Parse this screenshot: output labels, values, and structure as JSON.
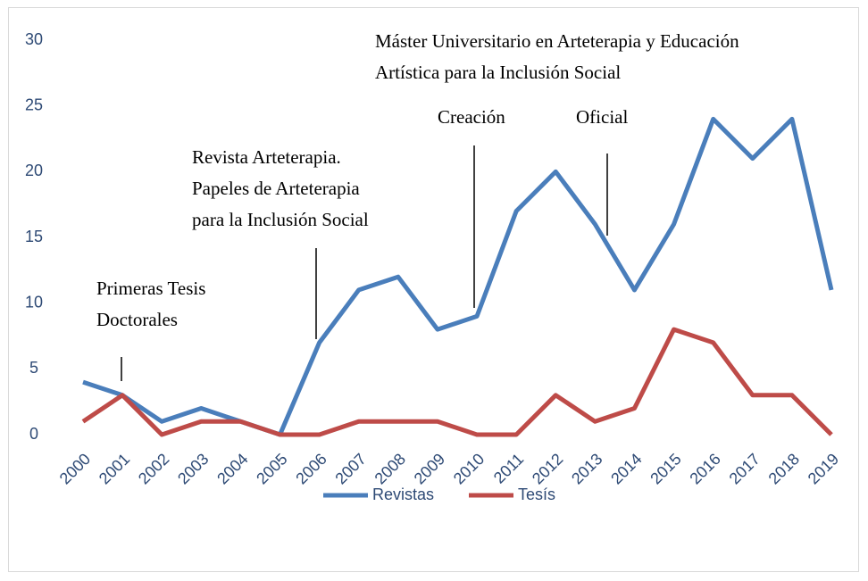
{
  "chart_data": {
    "type": "line",
    "categories": [
      "2000",
      "2001",
      "2002",
      "2003",
      "2004",
      "2005",
      "2006",
      "2007",
      "2008",
      "2009",
      "2010",
      "2011",
      "2012",
      "2013",
      "2014",
      "2015",
      "2016",
      "2017",
      "2018",
      "2019"
    ],
    "series": [
      {
        "name": "Revistas",
        "color": "#4a7ebb",
        "values": [
          4,
          3,
          1,
          2,
          1,
          0,
          7,
          11,
          12,
          8,
          9,
          17,
          20,
          16,
          11,
          16,
          24,
          21,
          24,
          11
        ]
      },
      {
        "name": "Tesís",
        "color": "#be4b48",
        "values": [
          1,
          3,
          0,
          1,
          1,
          0,
          0,
          1,
          1,
          1,
          0,
          0,
          3,
          1,
          2,
          8,
          7,
          3,
          3,
          0
        ]
      }
    ],
    "ylim": [
      0,
      30
    ],
    "yticks": [
      0,
      5,
      10,
      15,
      20,
      25,
      30
    ],
    "grid": false,
    "legend": "bottom",
    "annotations": [
      {
        "lines": [
          "Primeras  Tesis",
          "Doctorales"
        ]
      },
      {
        "lines": [
          "Revista Arteterapia.",
          "Papeles de Arteterapia",
          "para la Inclusión Social"
        ]
      },
      {
        "lines": [
          "Creación"
        ]
      },
      {
        "lines": [
          "Oficial"
        ]
      },
      {
        "lines": [
          "Máster Universitario  en Arteterapia y Educación",
          "Artística para la Inclusión Social"
        ]
      }
    ]
  }
}
